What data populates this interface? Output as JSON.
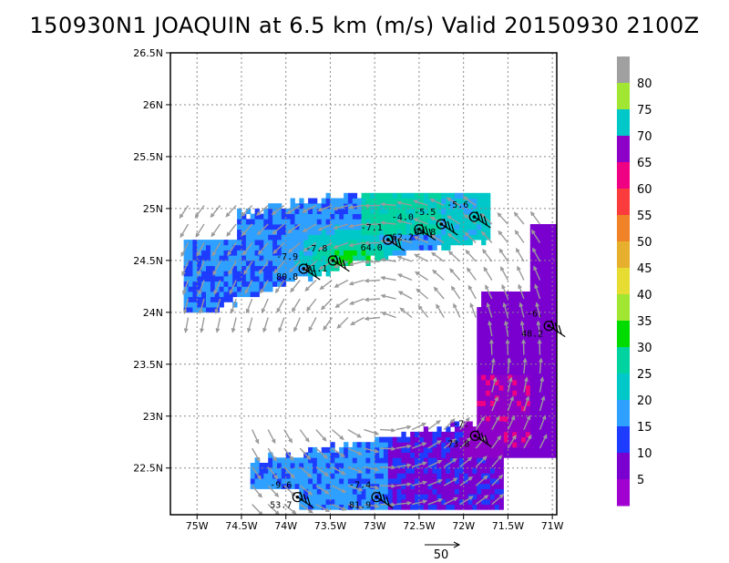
{
  "chart_data": {
    "type": "heatmap",
    "title": "150930N1  JOAQUIN at 6.5 km (m/s) Valid 20150930  2100Z",
    "x_axis": {
      "range": [
        -75.3,
        -70.95
      ],
      "ticks": [
        -75,
        -74.5,
        -74,
        -73.5,
        -73,
        -72.5,
        -72,
        -71.5,
        -71
      ],
      "tick_labels": [
        "75W",
        "74.5W",
        "74W",
        "73.5W",
        "73W",
        "72.5W",
        "72W",
        "71.5W",
        "71W"
      ]
    },
    "y_axis": {
      "range": [
        22.05,
        26.5
      ],
      "ticks": [
        22.5,
        23,
        23.5,
        24,
        24.5,
        25,
        25.5,
        26,
        26.5
      ],
      "tick_labels": [
        "22.5N",
        "23N",
        "23.5N",
        "24N",
        "24.5N",
        "25N",
        "25.5N",
        "26N",
        "26.5N"
      ]
    },
    "grid": true,
    "colorbar": {
      "levels": [
        "5",
        "10",
        "15",
        "20",
        "25",
        "30",
        "35",
        "40",
        "45",
        "50",
        "55",
        "60",
        "65",
        "70",
        "75",
        "80"
      ],
      "colors": [
        "#a000d0",
        "#7a00d0",
        "#1e3cff",
        "#2ea0ff",
        "#00c8c8",
        "#00d2a0",
        "#00dc00",
        "#a0e632",
        "#e6dc32",
        "#e6af2d",
        "#f08228",
        "#fa3c3c",
        "#f00082",
        "#8c00c8",
        "#00c8c8",
        "#a0e632",
        "#a0a0a0"
      ]
    },
    "reference_vector": {
      "label": "50",
      "value": 50
    },
    "fields": [
      {
        "name": "north",
        "lon": [
          -75.15,
          -71.75
        ],
        "lat": [
          23.9,
          25.15
        ]
      },
      {
        "name": "east",
        "lon": [
          -71.85,
          -70.95
        ],
        "lat": [
          22.6,
          24.85
        ]
      },
      {
        "name": "south",
        "lon": [
          -74.4,
          -71.6
        ],
        "lat": [
          22.1,
          22.95
        ]
      }
    ],
    "annotations": [
      {
        "lon": -73.8,
        "lat": 24.42,
        "top": "-7.9",
        "bottom": "80.8"
      },
      {
        "lon": -73.47,
        "lat": 24.5,
        "top": "-7.8",
        "bottom": "81.1"
      },
      {
        "lon": -72.85,
        "lat": 24.7,
        "top": "-7.1",
        "bottom": "64.0"
      },
      {
        "lon": -72.5,
        "lat": 24.8,
        "top": "-4.0",
        "bottom": "62.2"
      },
      {
        "lon": -72.25,
        "lat": 24.85,
        "top": "-5.5",
        "bottom": "64.8"
      },
      {
        "lon": -71.88,
        "lat": 24.92,
        "top": "-5.6",
        "bottom": ""
      },
      {
        "lon": -71.04,
        "lat": 23.87,
        "top": "-6.",
        "bottom": "48.2"
      },
      {
        "lon": -71.87,
        "lat": 22.81,
        "top": "-7.",
        "bottom": "73.8"
      },
      {
        "lon": -72.98,
        "lat": 22.22,
        "top": "-7.4",
        "bottom": "81.9"
      },
      {
        "lon": -73.87,
        "lat": 22.22,
        "top": "-9.6",
        "bottom": "53.7"
      }
    ]
  }
}
